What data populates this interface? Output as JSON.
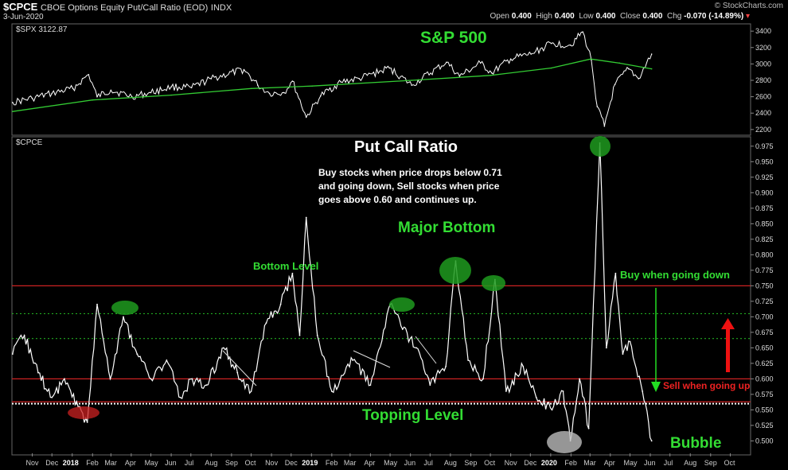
{
  "header": {
    "symbol": "$CPCE",
    "description": "CBOE Options Equity Put/Call Ratio (EOD)",
    "exchange": "INDX",
    "date": "3-Jun-2020",
    "brand": "© StockCharts.com",
    "open_label": "Open",
    "open": "0.400",
    "high_label": "High",
    "high": "0.400",
    "low_label": "Low",
    "low": "0.400",
    "close_label": "Close",
    "close": "0.400",
    "chg_label": "Chg",
    "chg": "-0.070 (-14.89%)"
  },
  "colors": {
    "background": "#000000",
    "price_line": "#ffffff",
    "moving_average": "#33cc33",
    "annotation_green": "#33dd33",
    "resistance_red": "#cc2222",
    "arrow_red": "#ee1111"
  },
  "chart_data": [
    {
      "type": "line",
      "panel_label": "$SPX 3122.87",
      "title": "S&P 500",
      "ylim": [
        2150,
        3450
      ],
      "yticks": [
        2200,
        2400,
        2600,
        2800,
        3000,
        3200,
        3400
      ],
      "series": [
        {
          "name": "$SPX",
          "x": [
            "2017-10-02",
            "2017-11-01",
            "2017-12-01",
            "2018-01-02",
            "2018-01-26",
            "2018-02-08",
            "2018-03-01",
            "2018-04-02",
            "2018-05-01",
            "2018-06-01",
            "2018-07-02",
            "2018-08-01",
            "2018-09-20",
            "2018-10-11",
            "2018-10-29",
            "2018-11-20",
            "2018-12-03",
            "2018-12-24",
            "2019-01-15",
            "2019-02-15",
            "2019-03-15",
            "2019-04-30",
            "2019-06-03",
            "2019-07-26",
            "2019-08-15",
            "2019-09-16",
            "2019-10-03",
            "2019-11-01",
            "2019-12-02",
            "2020-01-02",
            "2020-01-31",
            "2020-02-19",
            "2020-03-03",
            "2020-03-12",
            "2020-03-23",
            "2020-04-08",
            "2020-04-29",
            "2020-05-14",
            "2020-06-03"
          ],
          "values": [
            2530,
            2580,
            2640,
            2700,
            2870,
            2600,
            2680,
            2600,
            2650,
            2720,
            2710,
            2820,
            2930,
            2740,
            2640,
            2650,
            2790,
            2350,
            2610,
            2780,
            2820,
            2950,
            2740,
            3020,
            2850,
            3010,
            2890,
            3060,
            3120,
            3250,
            3230,
            3390,
            3050,
            2480,
            2240,
            2750,
            2940,
            2820,
            3120
          ]
        },
        {
          "name": "moving average",
          "x": [
            "2017-10-02",
            "2018-02-01",
            "2018-06-01",
            "2018-10-01",
            "2019-01-02",
            "2019-06-03",
            "2019-10-01",
            "2020-01-02",
            "2020-03-02",
            "2020-04-15",
            "2020-06-03"
          ],
          "values": [
            2420,
            2560,
            2620,
            2700,
            2730,
            2800,
            2860,
            2950,
            3060,
            3010,
            2940
          ]
        }
      ]
    },
    {
      "type": "line",
      "panel_label": "$CPCE",
      "title": "Put Call Ratio",
      "ylim": [
        0.48,
        0.985
      ],
      "yticks": [
        0.5,
        0.525,
        0.55,
        0.575,
        0.6,
        0.625,
        0.65,
        0.675,
        0.7,
        0.725,
        0.75,
        0.775,
        0.8,
        0.825,
        0.85,
        0.875,
        0.9,
        0.925,
        0.95,
        0.975
      ],
      "xtick_labels": [
        "Nov",
        "Dec",
        "2018",
        "Feb",
        "Mar",
        "Apr",
        "May",
        "Jun",
        "Jul",
        "Aug",
        "Sep",
        "Oct",
        "Nov",
        "Dec",
        "2019",
        "Feb",
        "Mar",
        "Apr",
        "May",
        "Jun",
        "Jul",
        "Aug",
        "Sep",
        "Oct",
        "Nov",
        "Dec",
        "2020",
        "Feb",
        "Mar",
        "Apr",
        "May",
        "Jun",
        "Jul",
        "Aug",
        "Sep",
        "Oct"
      ],
      "series": [
        {
          "name": "$CPCE",
          "x": [
            "2017-10-02",
            "2017-10-20",
            "2017-11-10",
            "2017-12-01",
            "2017-12-20",
            "2018-01-10",
            "2018-01-24",
            "2018-02-08",
            "2018-02-28",
            "2018-03-20",
            "2018-04-10",
            "2018-05-01",
            "2018-05-25",
            "2018-06-15",
            "2018-07-03",
            "2018-07-25",
            "2018-08-20",
            "2018-09-10",
            "2018-10-01",
            "2018-10-24",
            "2018-11-15",
            "2018-12-03",
            "2018-12-14",
            "2018-12-24",
            "2019-01-10",
            "2019-02-01",
            "2019-03-05",
            "2019-04-01",
            "2019-05-01",
            "2019-05-20",
            "2019-06-10",
            "2019-07-01",
            "2019-07-25",
            "2019-08-09",
            "2019-08-28",
            "2019-09-20",
            "2019-10-08",
            "2019-10-25",
            "2019-11-20",
            "2019-12-10",
            "2020-01-03",
            "2020-01-20",
            "2020-01-31",
            "2020-02-14",
            "2020-02-28",
            "2020-03-16",
            "2020-03-26",
            "2020-04-09",
            "2020-04-20",
            "2020-05-01",
            "2020-05-20",
            "2020-06-03"
          ],
          "values": [
            0.64,
            0.67,
            0.61,
            0.57,
            0.6,
            0.555,
            0.53,
            0.72,
            0.6,
            0.7,
            0.64,
            0.6,
            0.63,
            0.57,
            0.6,
            0.59,
            0.65,
            0.61,
            0.58,
            0.69,
            0.72,
            0.77,
            0.67,
            0.86,
            0.67,
            0.58,
            0.63,
            0.59,
            0.72,
            0.68,
            0.65,
            0.59,
            0.62,
            0.79,
            0.63,
            0.6,
            0.76,
            0.58,
            0.62,
            0.57,
            0.55,
            0.58,
            0.5,
            0.6,
            0.52,
            0.98,
            0.65,
            0.77,
            0.64,
            0.66,
            0.58,
            0.5
          ]
        }
      ],
      "reference_levels": {
        "green_dotted": [
          0.705,
          0.665
        ],
        "red_solid": [
          0.75,
          0.6,
          0.563
        ],
        "white_dotted": 0.56
      }
    }
  ],
  "annotations": {
    "put_call_title": "Put Call Ratio",
    "rule_line1": "Buy stocks when price drops below 0.71",
    "rule_line2": "and going down, Sell stocks when price",
    "rule_line3": "goes above 0.60 and continues up.",
    "major_bottom": "Major Bottom",
    "bottom_level": "Bottom Level",
    "buy_when": "Buy when going down",
    "sell_when": "Sell when going up",
    "topping_level": "Topping Level",
    "bubble": "Bubble"
  }
}
